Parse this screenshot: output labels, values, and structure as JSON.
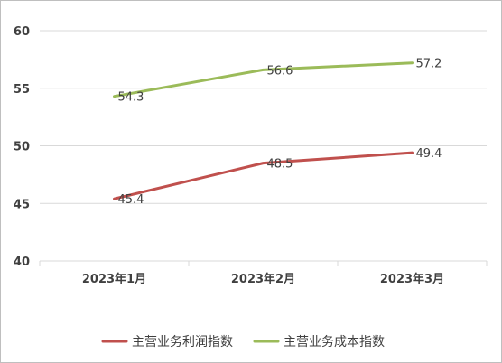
{
  "chart_data": {
    "type": "line",
    "categories": [
      "2023年1月",
      "2023年2月",
      "2023年3月"
    ],
    "series": [
      {
        "name": "主营业务利润指数",
        "values": [
          45.4,
          48.5,
          49.4
        ],
        "color": "#c0504d"
      },
      {
        "name": "主营业务成本指数",
        "values": [
          54.3,
          56.6,
          57.2
        ],
        "color": "#9bbb59"
      }
    ],
    "ylim": [
      40,
      60
    ],
    "yticks": [
      40,
      45,
      50,
      55,
      60
    ],
    "grid": true,
    "legend": "bottom",
    "data_labels": true,
    "title": "",
    "xlabel": "",
    "ylabel": ""
  }
}
